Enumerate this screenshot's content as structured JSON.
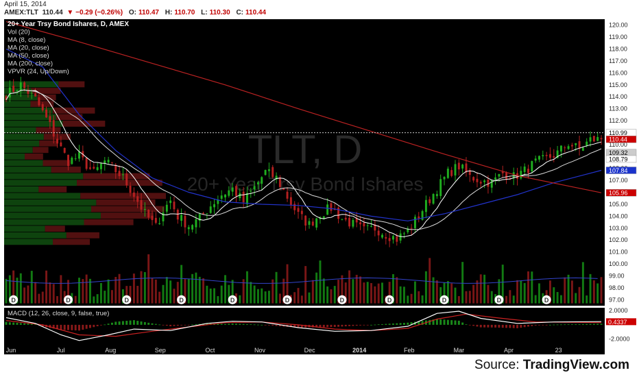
{
  "header": {
    "date": "April 15, 2014",
    "symbol": "AMEX:TLT",
    "last": "110.44",
    "change": "−0.29 (−0.26%)",
    "open_label": "O:",
    "open": "110.47",
    "high_label": "H:",
    "high": "110.70",
    "low_label": "L:",
    "low": "110.30",
    "close_label": "C:",
    "close": "110.44"
  },
  "legend": [
    "20+ Year Trsy Bond Ishares, D, AMEX",
    "Vol (20)",
    "MA (8, close)",
    "MA (20, close)",
    "MA (50, close)",
    "MA (200, close)",
    "VPVR (24, Up/Down)"
  ],
  "watermark": {
    "symbol": "TLT, D",
    "name": "20+ Year Trsy Bond Ishares"
  },
  "macd_label": "MACD (12, 26, close, 9, false, true)",
  "source": {
    "prefix": "Source: ",
    "brand": "TradingView.com"
  },
  "colors": {
    "up": "#1fae1f",
    "down": "#b52020",
    "ma8": "#ffffff",
    "ma20": "#ffffff",
    "ma50": "#2233cc",
    "ma200": "#bb2222",
    "background": "#000000"
  },
  "chart_data": {
    "type": "candlestick",
    "symbol": "TLT",
    "timeframe": "D",
    "xaxis_ticks": [
      "Jun",
      "Jul",
      "Aug",
      "Sep",
      "Oct",
      "Nov",
      "Dec",
      "2014",
      "Feb",
      "Mar",
      "Apr",
      "23"
    ],
    "price_axis": {
      "ylim": [
        96.5,
        120.5
      ],
      "ticks": [
        "120.00",
        "119.00",
        "118.00",
        "117.00",
        "116.00",
        "115.00",
        "114.00",
        "113.00",
        "112.00",
        "111.00",
        "110.00",
        "109.00",
        "108.00",
        "107.00",
        "106.00",
        "105.00",
        "104.00",
        "103.00",
        "102.00",
        "101.00",
        "100.00",
        "99.00",
        "98.00",
        "97.00"
      ]
    },
    "price_labels": [
      {
        "value": 110.99,
        "text": "110.99",
        "color": "#ffffff",
        "text_color": "#000000"
      },
      {
        "value": 110.44,
        "text": "110.44",
        "color": "#cc0000",
        "text_color": "#ffffff"
      },
      {
        "value": 109.32,
        "text": "109.32",
        "color": "#cccccc",
        "text_color": "#000000"
      },
      {
        "value": 108.79,
        "text": "108.79",
        "color": "#ffffff",
        "text_color": "#000000"
      },
      {
        "value": 107.84,
        "text": "107.84",
        "color": "#1a33cc",
        "text_color": "#ffffff"
      },
      {
        "value": 105.96,
        "text": "105.96",
        "color": "#cc0000",
        "text_color": "#ffffff"
      }
    ],
    "reference_line": 110.99,
    "price_path": [
      [
        0,
        114.2
      ],
      [
        4,
        115.0
      ],
      [
        8,
        113.8
      ],
      [
        12,
        111.6
      ],
      [
        14,
        110.2
      ],
      [
        17,
        108.6
      ],
      [
        20,
        109.0
      ],
      [
        24,
        107.6
      ],
      [
        27,
        108.6
      ],
      [
        29,
        108.1
      ],
      [
        32,
        107.2
      ],
      [
        35,
        105.8
      ],
      [
        38,
        104.2
      ],
      [
        41,
        103.1
      ],
      [
        43,
        104.5
      ],
      [
        45,
        105.3
      ],
      [
        47,
        104.0
      ],
      [
        50,
        103.2
      ],
      [
        53,
        103.8
      ],
      [
        56,
        104.9
      ],
      [
        59,
        105.8
      ],
      [
        62,
        106.3
      ],
      [
        65,
        105.2
      ],
      [
        68,
        106.4
      ],
      [
        71,
        107.7
      ],
      [
        74,
        107.2
      ],
      [
        77,
        105.6
      ],
      [
        80,
        104.1
      ],
      [
        83,
        103.3
      ],
      [
        86,
        104.2
      ],
      [
        89,
        104.7
      ],
      [
        92,
        103.8
      ],
      [
        95,
        103.3
      ],
      [
        98,
        102.8
      ],
      [
        101,
        103.0
      ],
      [
        104,
        102.5
      ],
      [
        107,
        102.1
      ],
      [
        110,
        102.8
      ],
      [
        112,
        103.6
      ],
      [
        115,
        105.0
      ],
      [
        118,
        106.3
      ],
      [
        121,
        107.6
      ],
      [
        124,
        108.2
      ],
      [
        127,
        107.3
      ],
      [
        130,
        107.0
      ],
      [
        133,
        106.8
      ],
      [
        136,
        107.6
      ],
      [
        139,
        107.3
      ],
      [
        142,
        107.8
      ],
      [
        145,
        108.5
      ],
      [
        148,
        108.8
      ],
      [
        151,
        109.3
      ],
      [
        154,
        110.1
      ],
      [
        157,
        109.6
      ],
      [
        160,
        110.4
      ],
      [
        163,
        110.44
      ]
    ],
    "ma200_path": [
      [
        0,
        120.3
      ],
      [
        20,
        118.6
      ],
      [
        40,
        116.8
      ],
      [
        60,
        115.0
      ],
      [
        80,
        113.0
      ],
      [
        100,
        111.1
      ],
      [
        120,
        109.2
      ],
      [
        140,
        107.4
      ],
      [
        163,
        105.96
      ]
    ],
    "ma50_path": [
      [
        0,
        118.0
      ],
      [
        10,
        116.5
      ],
      [
        20,
        112.5
      ],
      [
        30,
        109.5
      ],
      [
        40,
        107.2
      ],
      [
        50,
        106.0
      ],
      [
        60,
        105.2
      ],
      [
        70,
        105.0
      ],
      [
        80,
        104.9
      ],
      [
        90,
        104.6
      ],
      [
        100,
        104.0
      ],
      [
        110,
        103.6
      ],
      [
        120,
        104.2
      ],
      [
        130,
        105.0
      ],
      [
        140,
        105.8
      ],
      [
        150,
        106.8
      ],
      [
        163,
        107.84
      ]
    ],
    "volume_axis": {
      "note": "volume pane shares price-scale ticks 97–101"
    },
    "dividend_markers": [
      2,
      17,
      33,
      48,
      62,
      77,
      92,
      105,
      120,
      135,
      148
    ],
    "dividend_label": "D",
    "macd": {
      "label": "MACD (12, 26, close, 9, false, true)",
      "ticks": [
        "2.0000",
        "0.4337",
        "-2.0000"
      ],
      "ylim": [
        -2.6,
        2.0
      ],
      "current": 0.4337,
      "macd_path": [
        [
          0,
          1.0
        ],
        [
          8,
          0.2
        ],
        [
          15,
          -1.4
        ],
        [
          20,
          -2.2
        ],
        [
          28,
          -1.4
        ],
        [
          35,
          -0.6
        ],
        [
          45,
          -0.8
        ],
        [
          55,
          0.2
        ],
        [
          62,
          0.5
        ],
        [
          70,
          0.4
        ],
        [
          80,
          -0.4
        ],
        [
          90,
          -0.9
        ],
        [
          100,
          -0.8
        ],
        [
          110,
          -0.2
        ],
        [
          118,
          1.6
        ],
        [
          124,
          1.9
        ],
        [
          130,
          0.9
        ],
        [
          140,
          0.2
        ],
        [
          150,
          0.4
        ],
        [
          163,
          0.45
        ]
      ],
      "signal_path": [
        [
          0,
          0.6
        ],
        [
          10,
          0.0
        ],
        [
          20,
          -1.4
        ],
        [
          30,
          -1.6
        ],
        [
          40,
          -0.9
        ],
        [
          50,
          -0.3
        ],
        [
          60,
          0.3
        ],
        [
          70,
          0.4
        ],
        [
          80,
          0.0
        ],
        [
          90,
          -0.6
        ],
        [
          100,
          -0.8
        ],
        [
          110,
          -0.5
        ],
        [
          118,
          0.8
        ],
        [
          126,
          1.5
        ],
        [
          134,
          1.0
        ],
        [
          145,
          0.4
        ],
        [
          163,
          0.3
        ]
      ]
    }
  }
}
